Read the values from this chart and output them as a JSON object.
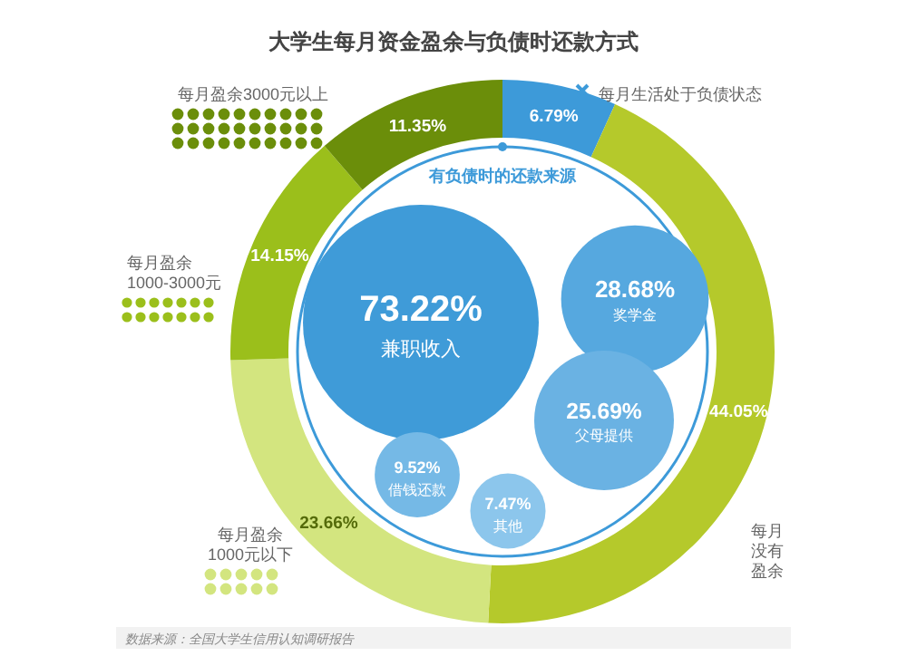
{
  "chart_data": [
    {
      "type": "donut",
      "title": "大学生每月资金盈余与负债时还款方式",
      "categories": [
        "每月生活处于负债状态",
        "每月没有盈余",
        "每月盈余1000元以下",
        "每月盈余1000-3000元",
        "每月盈余3000元以上"
      ],
      "values": [
        6.79,
        44.05,
        23.66,
        14.15,
        11.35
      ],
      "colors": [
        "#3d9ad9",
        "#b5c92b",
        "#d3e57f",
        "#9bbf1b",
        "#6b8e0a"
      ],
      "value_labels": [
        "6.79%",
        "44.05%",
        "23.66%",
        "14.15%",
        "11.35%"
      ],
      "annotations": [
        "数据来源：全国大学生信用认知调研报告"
      ]
    },
    {
      "type": "other",
      "title": "有负债时的还款来源",
      "categories": [
        "兼职收入",
        "奖学金",
        "父母提供",
        "借钱还款",
        "其他"
      ],
      "values": [
        73.22,
        28.68,
        25.69,
        9.52,
        7.47
      ],
      "colors": [
        "#3f9bd8",
        "#56a8df",
        "#6ab2e3",
        "#75b9e6",
        "#8cc6ec"
      ],
      "value_labels": [
        "73.22%",
        "28.68%",
        "25.69%",
        "9.52%",
        "7.47%"
      ]
    }
  ]
}
